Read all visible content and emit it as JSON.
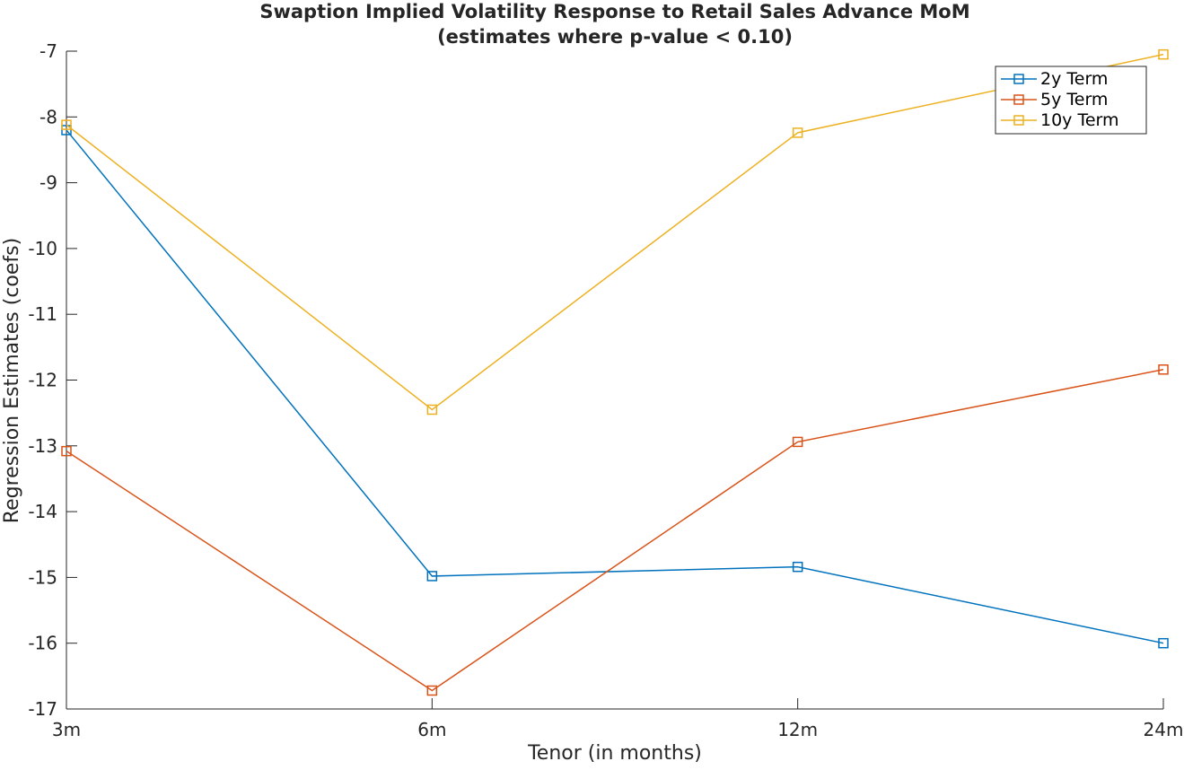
{
  "chart_data": {
    "type": "line",
    "title": "Swaption Implied Volatility Response to Retail Sales Advance MoM",
    "subtitle": "(estimates where p-value < 0.10)",
    "xlabel": "Tenor (in months)",
    "ylabel": "Regression Estimates (coefs)",
    "categories": [
      "3m",
      "6m",
      "12m",
      "24m"
    ],
    "ylim": [
      -17,
      -7
    ],
    "yticks": [
      -17,
      -16,
      -15,
      -14,
      -13,
      -12,
      -11,
      -10,
      -9,
      -8,
      -7
    ],
    "grid": false,
    "legend_position": "top-right",
    "series": [
      {
        "name": "2y Term",
        "color": "#0072BD",
        "values": [
          -8.2,
          -14.98,
          -14.84,
          -16.0
        ]
      },
      {
        "name": "5y Term",
        "color": "#D95319",
        "values": [
          -13.08,
          -16.72,
          -12.94,
          -11.84
        ]
      },
      {
        "name": "10y Term",
        "color": "#EDB120",
        "values": [
          -8.12,
          -12.45,
          -8.24,
          -7.05
        ]
      }
    ]
  }
}
